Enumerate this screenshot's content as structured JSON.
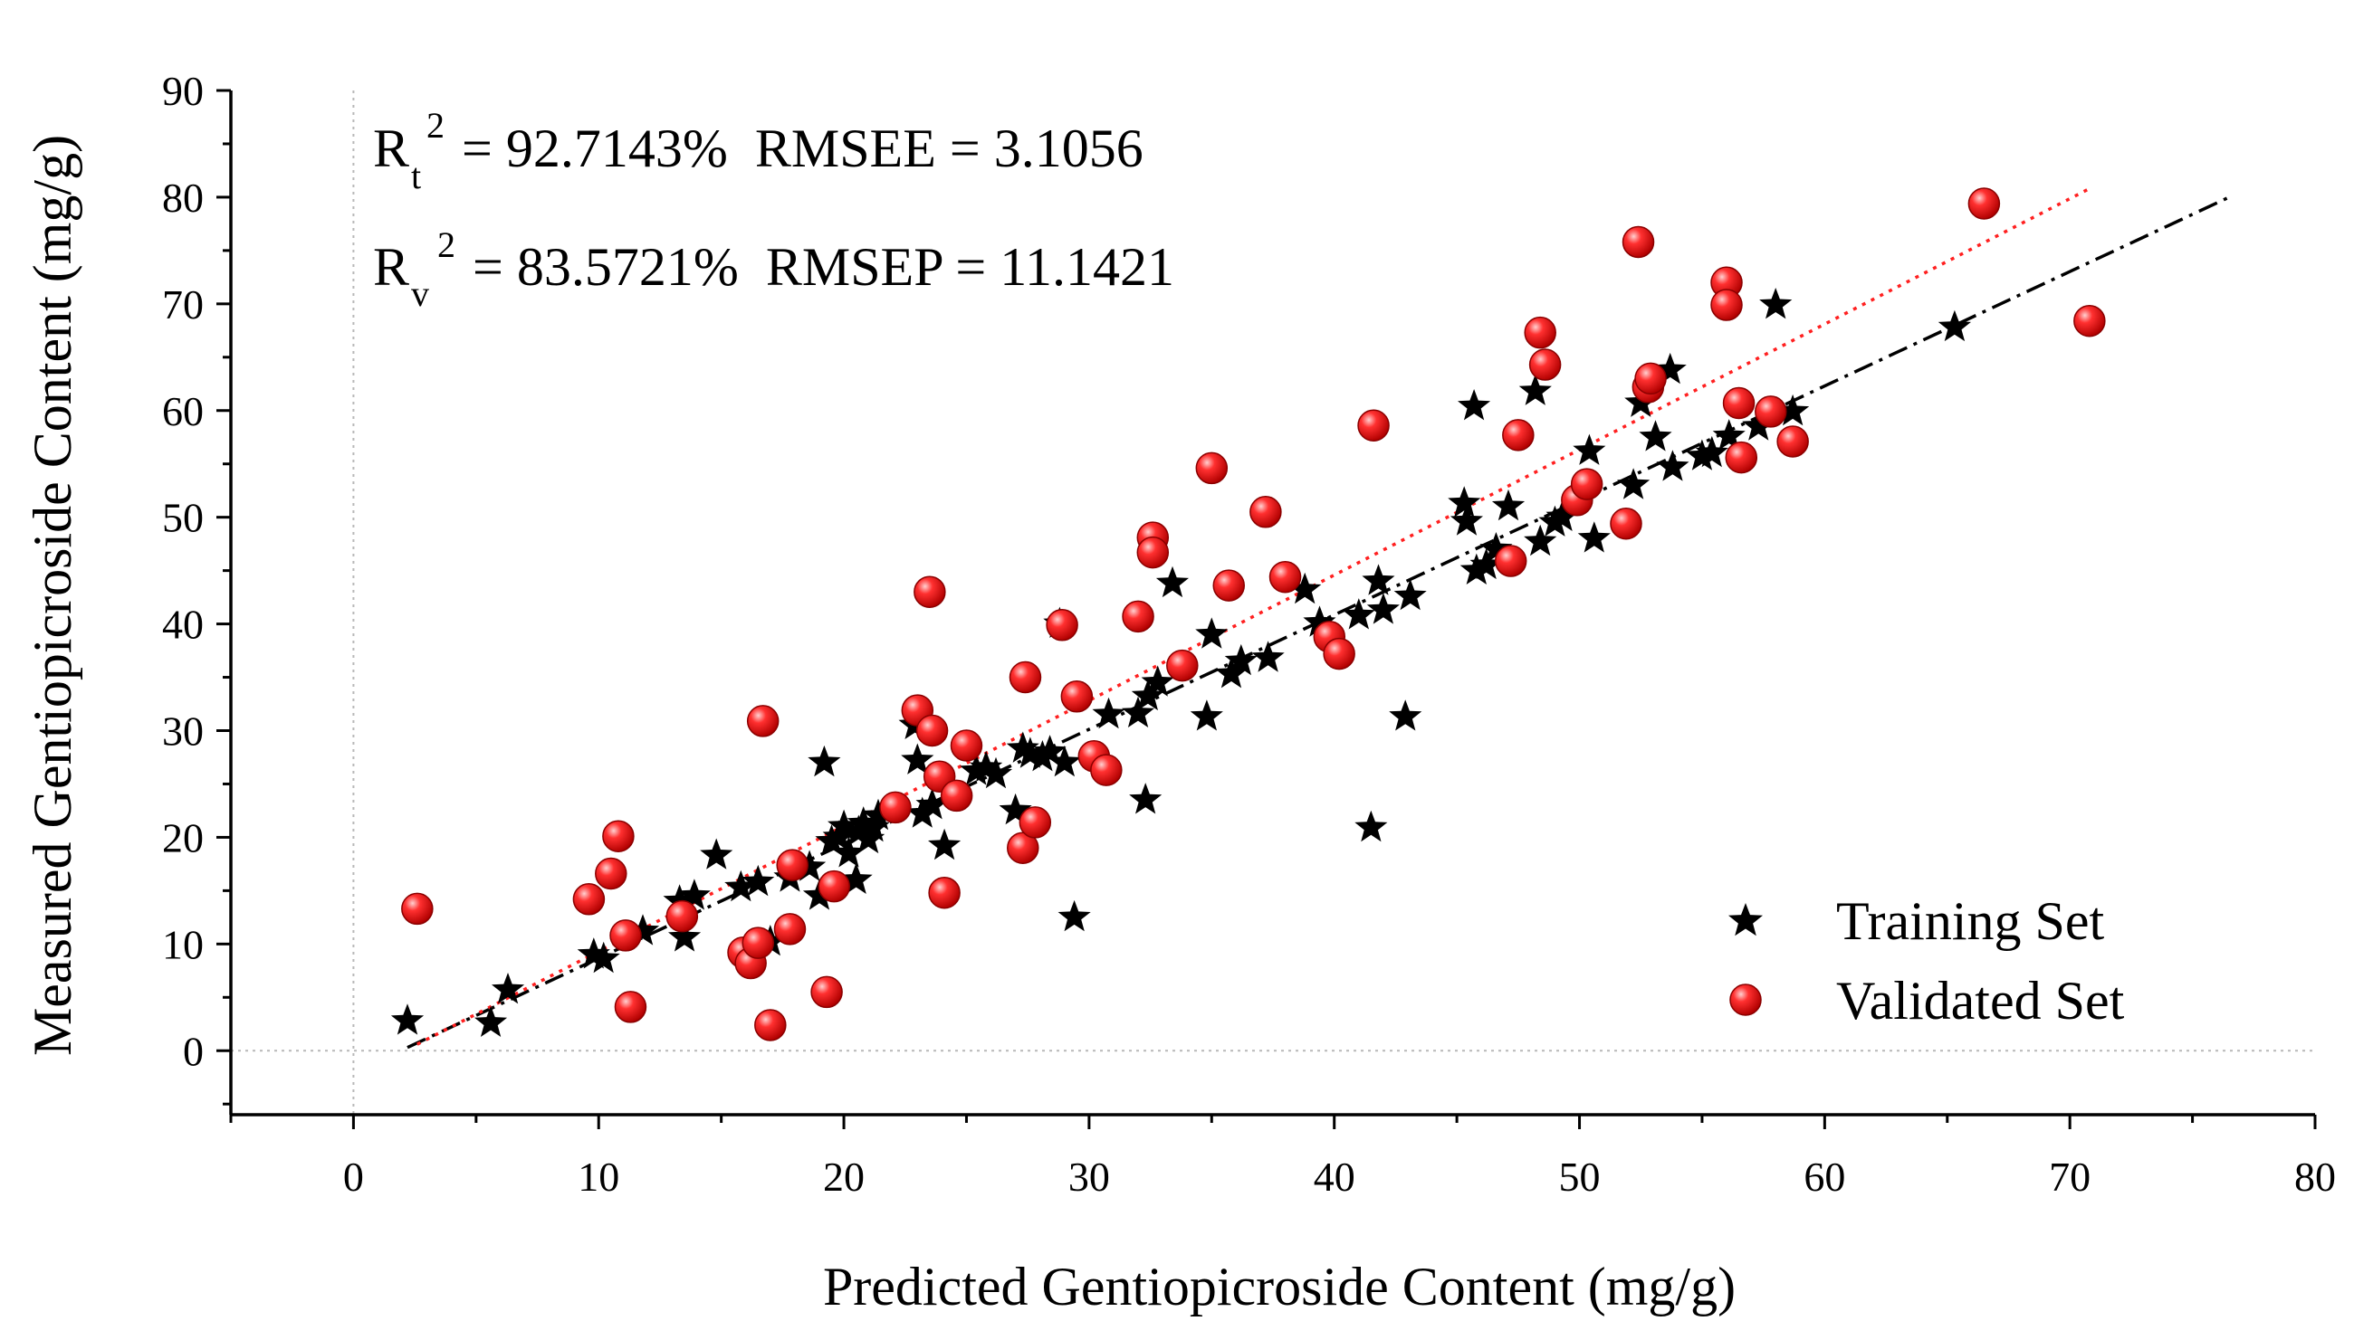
{
  "chart_data": {
    "type": "scatter",
    "title": "",
    "xlabel": "Predicted Gentiopicroside Content (mg/g)",
    "ylabel": "Measured Gentiopicroside Content (mg/g)",
    "xlim": [
      -5,
      80
    ],
    "ylim": [
      -6,
      90
    ],
    "xticks": [
      0,
      10,
      20,
      30,
      40,
      50,
      60,
      70,
      80
    ],
    "yticks": [
      0,
      10,
      20,
      30,
      40,
      50,
      60,
      70,
      80,
      90
    ],
    "zero_reference_lines": true,
    "legend_position": "bottom-right",
    "colors": {
      "training": "#000000",
      "validated": "#ee1c1c",
      "validated_edge": "#8a0000",
      "validated_fit": "#ff2020",
      "training_fit": "#000000",
      "reference": "#b8b8b8"
    },
    "annotations": {
      "line1": {
        "r": "R",
        "sub": "t",
        "sup": "2",
        "text": " = 92.7143%  RMSEE = 3.1056"
      },
      "line2": {
        "r": "R",
        "sub": "v",
        "sup": "2",
        "text": " = 83.5721%  RMSEP = 11.1421"
      }
    },
    "series": [
      {
        "name": "Training Set",
        "marker": "star",
        "color": "#000000",
        "points": [
          [
            2.2,
            2.8
          ],
          [
            5.6,
            2.6
          ],
          [
            6.3,
            5.7
          ],
          [
            9.8,
            9.0
          ],
          [
            10.2,
            8.6
          ],
          [
            11.8,
            11.2
          ],
          [
            13.3,
            14.0
          ],
          [
            13.5,
            10.6
          ],
          [
            13.9,
            14.5
          ],
          [
            14.8,
            18.3
          ],
          [
            15.8,
            15.3
          ],
          [
            16.5,
            15.8
          ],
          [
            17.0,
            10.2
          ],
          [
            17.8,
            16.2
          ],
          [
            18.6,
            17.2
          ],
          [
            19.0,
            14.5
          ],
          [
            19.2,
            27.0
          ],
          [
            19.5,
            19.6
          ],
          [
            19.8,
            20.0
          ],
          [
            20.0,
            21.0
          ],
          [
            20.2,
            18.5
          ],
          [
            20.5,
            16.0
          ],
          [
            20.6,
            20.5
          ],
          [
            20.8,
            21.3
          ],
          [
            21.0,
            19.8
          ],
          [
            21.2,
            20.9
          ],
          [
            21.4,
            22.0
          ],
          [
            22.9,
            30.5
          ],
          [
            23.0,
            27.2
          ],
          [
            23.2,
            22.2
          ],
          [
            23.6,
            23.0
          ],
          [
            24.1,
            19.2
          ],
          [
            25.4,
            26.2
          ],
          [
            25.8,
            26.5
          ],
          [
            26.2,
            25.9
          ],
          [
            27.0,
            22.5
          ],
          [
            27.3,
            28.3
          ],
          [
            27.6,
            27.8
          ],
          [
            28.1,
            27.5
          ],
          [
            28.4,
            28.0
          ],
          [
            28.8,
            40.0
          ],
          [
            29.0,
            27.0
          ],
          [
            29.4,
            12.5
          ],
          [
            30.8,
            31.5
          ],
          [
            32.0,
            31.6
          ],
          [
            32.3,
            23.5
          ],
          [
            32.4,
            33.2
          ],
          [
            32.8,
            34.5
          ],
          [
            33.4,
            43.8
          ],
          [
            34.8,
            31.3
          ],
          [
            35.0,
            39.0
          ],
          [
            35.8,
            35.3
          ],
          [
            36.2,
            36.5
          ],
          [
            37.3,
            36.8
          ],
          [
            38.8,
            43.2
          ],
          [
            39.4,
            40.1
          ],
          [
            41.0,
            40.8
          ],
          [
            41.5,
            20.9
          ],
          [
            41.8,
            44.0
          ],
          [
            42.0,
            41.3
          ],
          [
            42.9,
            31.3
          ],
          [
            43.1,
            42.6
          ],
          [
            45.3,
            51.3
          ],
          [
            45.4,
            49.6
          ],
          [
            45.7,
            60.4
          ],
          [
            45.8,
            45.0
          ],
          [
            46.2,
            45.5
          ],
          [
            46.6,
            47.0
          ],
          [
            47.1,
            51.0
          ],
          [
            48.2,
            61.8
          ],
          [
            48.4,
            47.7
          ],
          [
            49.0,
            49.5
          ],
          [
            49.3,
            50.0
          ],
          [
            50.4,
            56.2
          ],
          [
            50.6,
            48.0
          ],
          [
            52.2,
            53.0
          ],
          [
            52.5,
            60.7
          ],
          [
            53.1,
            57.5
          ],
          [
            53.7,
            63.8
          ],
          [
            53.8,
            54.7
          ],
          [
            55.0,
            55.7
          ],
          [
            55.4,
            56.0
          ],
          [
            56.1,
            57.6
          ],
          [
            57.3,
            58.5
          ],
          [
            58.0,
            69.9
          ],
          [
            58.7,
            59.9
          ],
          [
            65.3,
            67.8
          ]
        ]
      },
      {
        "name": "Validated Set",
        "marker": "sphere",
        "color": "#ee1c1c",
        "points": [
          [
            2.6,
            13.3
          ],
          [
            9.6,
            14.2
          ],
          [
            10.5,
            16.6
          ],
          [
            10.8,
            20.1
          ],
          [
            11.1,
            10.8
          ],
          [
            11.3,
            4.1
          ],
          [
            13.4,
            12.6
          ],
          [
            15.9,
            9.2
          ],
          [
            16.2,
            8.2
          ],
          [
            16.5,
            10.1
          ],
          [
            16.7,
            30.9
          ],
          [
            17.0,
            2.4
          ],
          [
            17.8,
            11.4
          ],
          [
            17.9,
            17.4
          ],
          [
            19.3,
            5.5
          ],
          [
            19.6,
            15.4
          ],
          [
            22.1,
            22.8
          ],
          [
            23.0,
            31.9
          ],
          [
            23.5,
            43.0
          ],
          [
            23.6,
            30.0
          ],
          [
            23.9,
            25.7
          ],
          [
            24.1,
            14.8
          ],
          [
            24.6,
            23.9
          ],
          [
            25.0,
            28.6
          ],
          [
            27.3,
            19.0
          ],
          [
            27.4,
            35.0
          ],
          [
            27.8,
            21.4
          ],
          [
            28.9,
            39.9
          ],
          [
            29.5,
            33.2
          ],
          [
            30.2,
            27.6
          ],
          [
            30.7,
            26.3
          ],
          [
            32.0,
            40.7
          ],
          [
            32.6,
            48.1
          ],
          [
            32.6,
            46.7
          ],
          [
            33.8,
            36.1
          ],
          [
            35.0,
            54.6
          ],
          [
            35.7,
            43.6
          ],
          [
            37.2,
            50.5
          ],
          [
            38.0,
            44.4
          ],
          [
            39.8,
            38.8
          ],
          [
            40.2,
            37.2
          ],
          [
            41.6,
            58.6
          ],
          [
            47.2,
            45.9
          ],
          [
            47.5,
            57.7
          ],
          [
            48.4,
            67.3
          ],
          [
            48.6,
            64.3
          ],
          [
            49.9,
            51.6
          ],
          [
            50.3,
            53.1
          ],
          [
            51.9,
            49.4
          ],
          [
            52.4,
            75.8
          ],
          [
            52.8,
            62.2
          ],
          [
            52.9,
            63.0
          ],
          [
            56.0,
            72.0
          ],
          [
            56.0,
            69.9
          ],
          [
            56.5,
            60.7
          ],
          [
            56.6,
            55.6
          ],
          [
            57.8,
            59.9
          ],
          [
            58.7,
            57.1
          ],
          [
            66.5,
            79.4
          ],
          [
            70.8,
            68.4
          ]
        ]
      }
    ],
    "fits": [
      {
        "name": "training-fit",
        "style": "dashdot",
        "color": "#000000",
        "from": [
          2.2,
          0.3
        ],
        "to": [
          76.5,
          80.0
        ]
      },
      {
        "name": "validated-fit",
        "style": "dotted",
        "color": "#ff2020",
        "from": [
          2.6,
          0.6
        ],
        "to": [
          70.8,
          80.8
        ]
      }
    ]
  }
}
